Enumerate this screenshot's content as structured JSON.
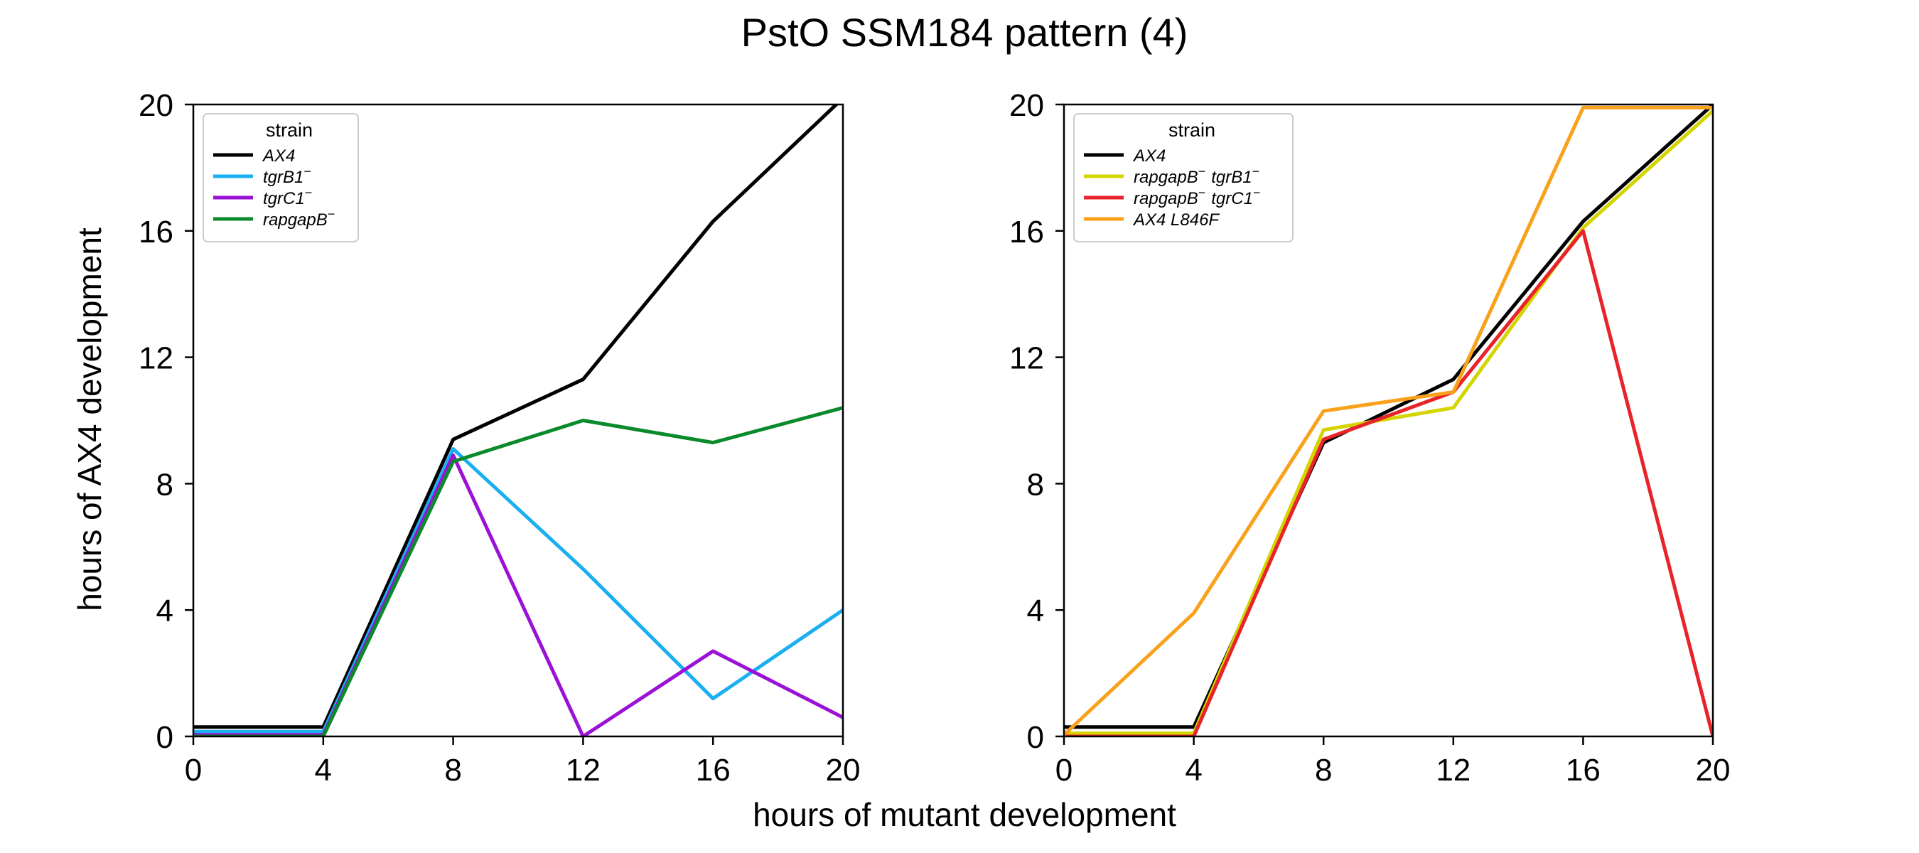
{
  "chart_data": {
    "title": "PstO SSM184 pattern (4)",
    "xlabel": "hours of mutant development",
    "ylabel": "hours of AX4 development",
    "subplots": [
      {
        "type": "line",
        "xlim": [
          0,
          20
        ],
        "ylim": [
          0,
          20
        ],
        "xticks": [
          "0",
          "4",
          "8",
          "12",
          "16",
          "20"
        ],
        "yticks": [
          "0",
          "4",
          "8",
          "12",
          "16",
          "20"
        ],
        "grid": false,
        "legend": {
          "title": "strain",
          "placement": "top-left",
          "entries": [
            {
              "base": "AX4",
              "sup": ""
            },
            {
              "base": "tgrB1",
              "sup": "−"
            },
            {
              "base": "tgrC1",
              "sup": "−"
            },
            {
              "base": "rapgapB",
              "sup": "−"
            }
          ]
        },
        "series": [
          {
            "color": "#000000",
            "x": [
              0,
              4,
              8,
              12,
              16,
              20
            ],
            "y": [
              0.3,
              0.3,
              9.4,
              11.3,
              16.3,
              20.2
            ]
          },
          {
            "color": "#1aaff0",
            "x": [
              0,
              4,
              8,
              12,
              16,
              20
            ],
            "y": [
              0.15,
              0.15,
              9.1,
              5.3,
              1.2,
              4.0
            ]
          },
          {
            "color": "#9b11d6",
            "x": [
              0,
              4,
              8,
              12,
              16,
              20
            ],
            "y": [
              0.05,
              0.05,
              8.9,
              0.0,
              2.7,
              0.6
            ]
          },
          {
            "color": "#0b8a2b",
            "x": [
              0,
              4,
              8,
              12,
              16,
              20
            ],
            "y": [
              0.0,
              0.0,
              8.7,
              10.0,
              9.3,
              10.4
            ]
          }
        ]
      },
      {
        "type": "line",
        "xlim": [
          0,
          20
        ],
        "ylim": [
          0,
          20
        ],
        "xticks": [
          "0",
          "4",
          "8",
          "12",
          "16",
          "20"
        ],
        "yticks": [
          "0",
          "4",
          "8",
          "12",
          "16",
          "20"
        ],
        "grid": false,
        "legend": {
          "title": "strain",
          "placement": "top-left",
          "entries": [
            {
              "base": "AX4",
              "sup": ""
            },
            {
              "base": "rapgapB",
              "sup": "−",
              "base2": "tgrB1",
              "sup2": "−"
            },
            {
              "base": "rapgapB",
              "sup": "−",
              "base2": "tgrC1",
              "sup2": "−"
            },
            {
              "base": "AX4 L846F",
              "sup": ""
            }
          ]
        },
        "series": [
          {
            "color": "#000000",
            "x": [
              0,
              4,
              8,
              12,
              16,
              20
            ],
            "y": [
              0.3,
              0.3,
              9.3,
              11.3,
              16.3,
              20.0
            ]
          },
          {
            "color": "#d4d400",
            "x": [
              0,
              4,
              8,
              12,
              16,
              20
            ],
            "y": [
              0.1,
              0.1,
              9.7,
              10.4,
              16.1,
              19.8
            ]
          },
          {
            "color": "#e8232a",
            "x": [
              0,
              4,
              8,
              12,
              16,
              20
            ],
            "y": [
              0.0,
              0.0,
              9.4,
              10.9,
              16.0,
              0.0
            ]
          },
          {
            "color": "#f9a11b",
            "x": [
              0,
              4,
              8,
              12,
              16,
              20
            ],
            "y": [
              0.05,
              3.9,
              10.3,
              10.9,
              19.9,
              19.9
            ]
          }
        ]
      }
    ]
  }
}
